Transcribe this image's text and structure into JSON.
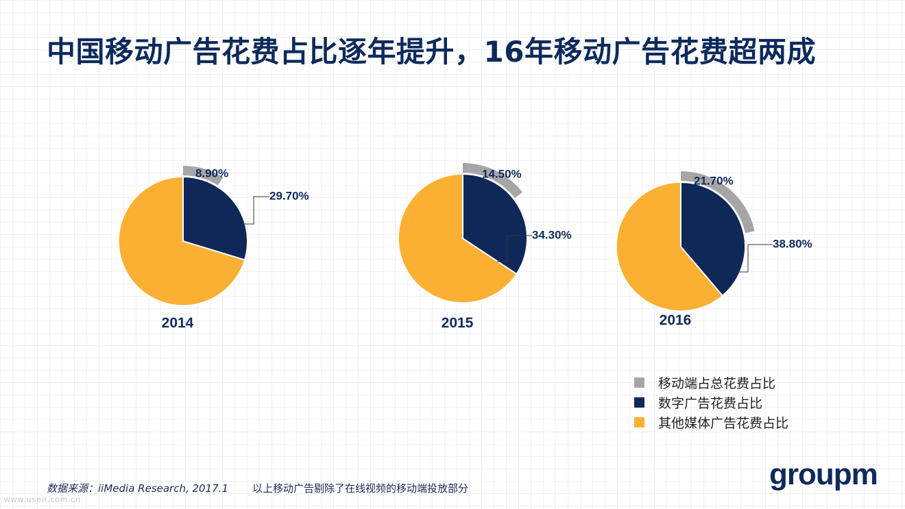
{
  "title": "中国移动广告花费占比逐年提升，16年移动广告花费超两成",
  "colors": {
    "mobile": "#a6a6a6",
    "digital": "#0e2858",
    "other": "#fbb034"
  },
  "chart_data": [
    {
      "type": "pie",
      "year": "2014",
      "slices": [
        {
          "name": "数字广告花费占比",
          "value": 29.7,
          "label": "29.70%"
        },
        {
          "name": "其他媒体广告花费占比",
          "value": 70.3
        }
      ],
      "outer_ring": {
        "name": "移动端占总花费占比",
        "value": 8.9,
        "label": "8.90%"
      }
    },
    {
      "type": "pie",
      "year": "2015",
      "slices": [
        {
          "name": "数字广告花费占比",
          "value": 34.3,
          "label": "34.30%"
        },
        {
          "name": "其他媒体广告花费占比",
          "value": 65.7
        }
      ],
      "outer_ring": {
        "name": "移动端占总花费占比",
        "value": 14.5,
        "label": "14.50%"
      }
    },
    {
      "type": "pie",
      "year": "2016",
      "slices": [
        {
          "name": "数字广告花费占比",
          "value": 38.8,
          "label": "38.80%"
        },
        {
          "name": "其他媒体广告花费占比",
          "value": 61.2
        }
      ],
      "outer_ring": {
        "name": "移动端占总花费占比",
        "value": 21.7,
        "label": "21.70%"
      }
    }
  ],
  "legend": [
    {
      "label": "移动端占总花费占比",
      "color": "#a6a6a6"
    },
    {
      "label": "数字广告花费占比",
      "color": "#0e2858"
    },
    {
      "label": "其他媒体广告花费占比",
      "color": "#fbb034"
    }
  ],
  "footer": {
    "source": "数据来源：iiMedia Research, 2017.1",
    "note": "以上移动广告剔除了在线视频的移动端投放部分",
    "watermark": "www.useit.com.cn",
    "logo": "groupm"
  }
}
